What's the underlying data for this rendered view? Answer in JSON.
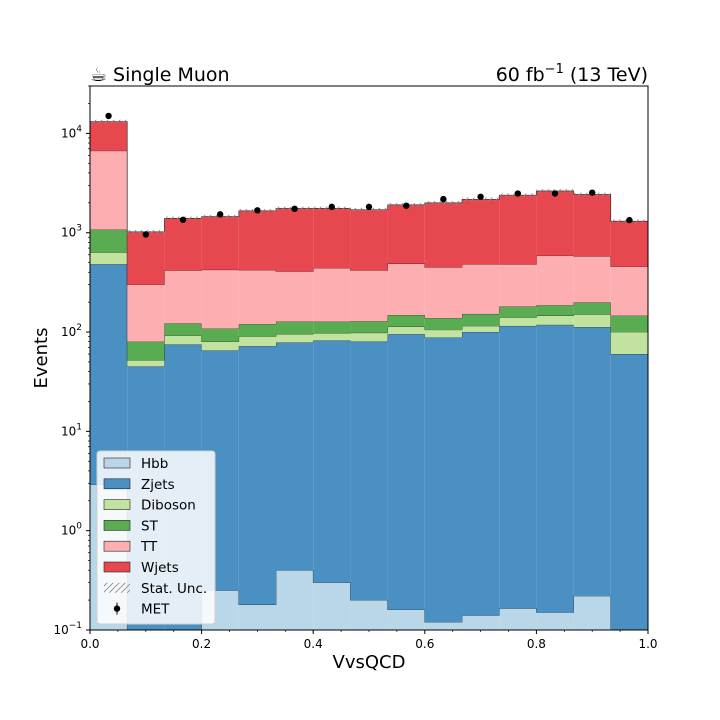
{
  "header": {
    "icon": "coffee-icon",
    "icon_glyph": "☕",
    "title": "Single Muon",
    "lumi_value": "60 fb",
    "lumi_exp": "−1",
    "lumi_energy": " (13 TeV)"
  },
  "chart_data": {
    "type": "bar",
    "subtype": "stacked-histogram",
    "xlabel": "VvsQCD",
    "ylabel": "Events",
    "xlim": [
      0,
      1
    ],
    "ylim": [
      0.1,
      30000
    ],
    "yscale": "log",
    "x_ticks": [
      "0.0",
      "0.2",
      "0.4",
      "0.6",
      "0.8",
      "1.0"
    ],
    "y_ticks": [
      {
        "base": "10",
        "exp": "−1"
      },
      {
        "base": "10",
        "exp": "0"
      },
      {
        "base": "10",
        "exp": "1"
      },
      {
        "base": "10",
        "exp": "2"
      },
      {
        "base": "10",
        "exp": "3"
      },
      {
        "base": "10",
        "exp": "4"
      }
    ],
    "bin_edges": [
      0,
      0.0667,
      0.1333,
      0.2,
      0.2667,
      0.3333,
      0.4,
      0.4667,
      0.5333,
      0.6,
      0.6667,
      0.7333,
      0.8,
      0.8667,
      0.9333,
      1.0
    ],
    "stack": [
      {
        "name": "Hbb",
        "color": "#b9d7e8",
        "values": [
          2.9,
          0.05,
          0.05,
          0.25,
          0.18,
          0.4,
          0.3,
          0.2,
          0.16,
          0.12,
          0.14,
          0.165,
          0.15,
          0.22,
          0.05
        ]
      },
      {
        "name": "Zjets",
        "color": "#4a90c2",
        "values": [
          480,
          45,
          75,
          65,
          72,
          78,
          82,
          80,
          95,
          88,
          100,
          115,
          118,
          112,
          60
        ]
      },
      {
        "name": "Diboson",
        "color": "#c2e3a0",
        "values": [
          150,
          7,
          17,
          15,
          18,
          17,
          15,
          18,
          18,
          17,
          15,
          25,
          28,
          38,
          40
        ]
      },
      {
        "name": "ST",
        "color": "#59ac52",
        "values": [
          440,
          28,
          30,
          28,
          30,
          32,
          30,
          30,
          35,
          33,
          37,
          40,
          40,
          48,
          46
        ]
      },
      {
        "name": "TT",
        "color": "#fcaeb0",
        "values": [
          5600,
          220,
          295,
          315,
          300,
          280,
          313,
          290,
          340,
          310,
          330,
          300,
          400,
          380,
          310
        ]
      },
      {
        "name": "Wjets",
        "color": "#e7474f",
        "values": [
          6500,
          720,
          980,
          1030,
          1240,
          1350,
          1320,
          1290,
          1420,
          1550,
          1690,
          1910,
          2050,
          1850,
          850
        ]
      }
    ],
    "data_series": {
      "name": "MET",
      "x": [
        0.0333,
        0.1,
        0.1667,
        0.2333,
        0.3,
        0.3667,
        0.4333,
        0.5,
        0.5667,
        0.6333,
        0.7,
        0.7667,
        0.8333,
        0.9,
        0.9667
      ],
      "y": [
        15000,
        960,
        1350,
        1530,
        1680,
        1740,
        1820,
        1820,
        1870,
        2180,
        2300,
        2480,
        2480,
        2530,
        1340
      ]
    },
    "legend": {
      "placement": "bottom-left",
      "entries": [
        "Hbb",
        "Zjets",
        "Diboson",
        "ST",
        "TT",
        "Wjets",
        "Stat. Unc.",
        "MET"
      ]
    }
  }
}
